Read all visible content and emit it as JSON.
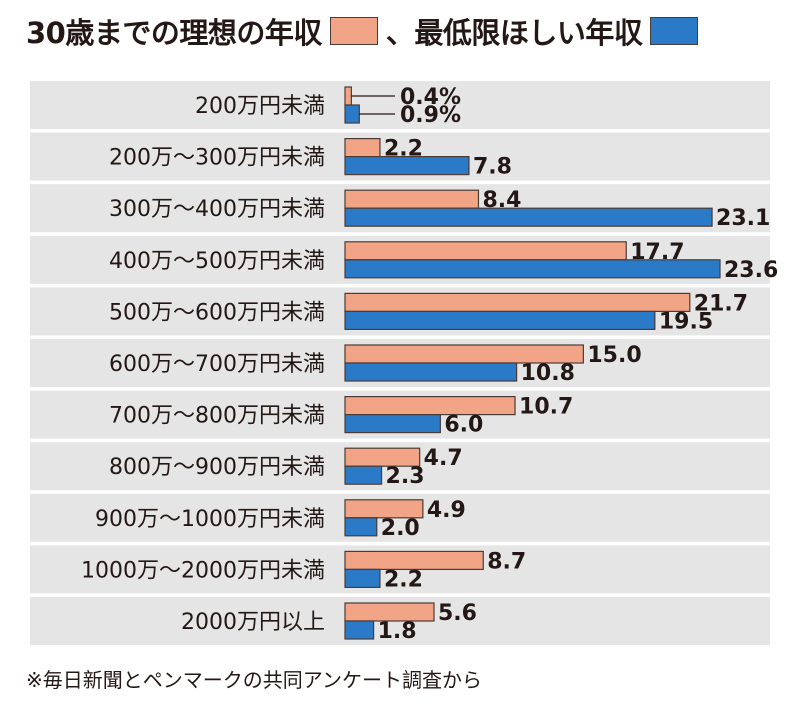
{
  "chart_data": {
    "type": "bar",
    "orientation": "horizontal",
    "categories": [
      "200万円未満",
      "200万～300万円未満",
      "300万～400万円未満",
      "400万～500万円未満",
      "500万～600万円未満",
      "600万～700万円未満",
      "700万～800万円未満",
      "800万～900万円未満",
      "900万～1000万円未満",
      "1000万～2000万円未満",
      "2000万円以上"
    ],
    "series": [
      {
        "name": "30歳までの理想の年収",
        "color": "#f2a487",
        "values": [
          0.4,
          2.2,
          8.4,
          17.7,
          21.7,
          15.0,
          10.7,
          4.7,
          4.9,
          8.7,
          5.6
        ],
        "labels": [
          "0.4%",
          "2.2",
          "8.4",
          "17.7",
          "21.7",
          "15.0",
          "10.7",
          "4.7",
          "4.9",
          "8.7",
          "5.6"
        ]
      },
      {
        "name": "最低限ほしい年収",
        "color": "#2a7ac8",
        "values": [
          0.9,
          7.8,
          23.1,
          23.6,
          19.5,
          10.8,
          6.0,
          2.3,
          2.0,
          2.2,
          1.8
        ],
        "labels": [
          "0.9%",
          "7.8",
          "23.1",
          "23.6",
          "19.5",
          "10.8",
          "6.0",
          "2.3",
          "2.0",
          "2.2",
          "1.8"
        ]
      }
    ],
    "legend_separator": "、",
    "xlim": [
      0,
      23.6
    ],
    "grid": false,
    "legend_position": "top",
    "row_background": "#e5e5e5"
  },
  "footnote": "※毎日新聞とペンマークの共同アンケート調査から"
}
